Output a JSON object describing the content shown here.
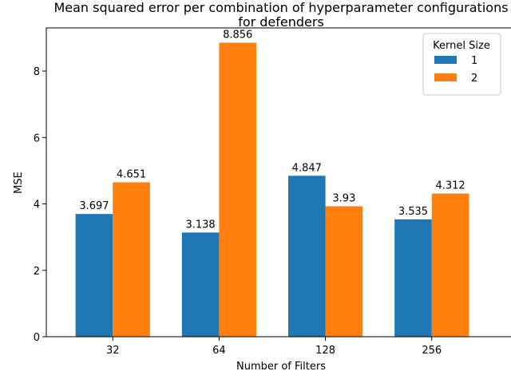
{
  "chart_data": {
    "type": "bar",
    "title_line1": "Mean squared error per combination of hyperparameter configurations",
    "title_line2": "for defenders",
    "xlabel": "Number of Filters",
    "ylabel": "MSE",
    "categories": [
      "32",
      "64",
      "128",
      "256"
    ],
    "series": [
      {
        "name": "1",
        "color": "#1f77b4",
        "values": [
          3.697,
          3.138,
          4.847,
          3.535
        ]
      },
      {
        "name": "2",
        "color": "#ff7f0e",
        "values": [
          4.651,
          8.856,
          3.93,
          4.312
        ]
      }
    ],
    "ylim": [
      0,
      9.3
    ],
    "yticks": [
      0,
      2,
      4,
      6,
      8
    ],
    "legend_title": "Kernel Size",
    "legend_position": "upper right",
    "grid": false
  }
}
